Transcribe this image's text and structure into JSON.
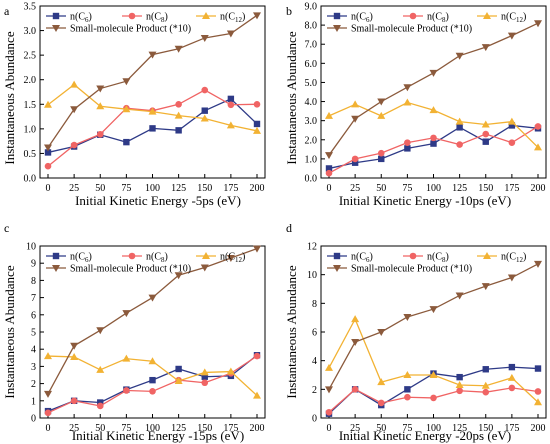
{
  "colors": {
    "c6": "#2e3a87",
    "c8": "#f06464",
    "c12": "#f2b233",
    "small": "#8b5a3c",
    "axis": "#000000"
  },
  "chart_data": [
    {
      "panel": "a",
      "type": "line",
      "xlabel": "Initial Kinetic Energy -5ps (eV)",
      "ylabel": "Instantaneous Abundance",
      "x": [
        0,
        25,
        50,
        75,
        100,
        125,
        150,
        175,
        200
      ],
      "xticks": [
        "0",
        "25",
        "50",
        "75",
        "100",
        "125",
        "150",
        "175",
        "200"
      ],
      "ylim": [
        0,
        3.5
      ],
      "yticks": [
        "0.0",
        "0.5",
        "1.0",
        "1.5",
        "2.0",
        "2.5",
        "3.0",
        "3.5"
      ],
      "legend": {
        "placement": "top-left",
        "c6": [
          "n(C",
          "6",
          ")"
        ],
        "c8": [
          "n(C",
          "8",
          ")"
        ],
        "c12": [
          "n(C",
          "12",
          ")"
        ],
        "small": "Small-molecule Product (*10)"
      },
      "series": [
        {
          "key": "c6",
          "marker": "square",
          "values": [
            0.52,
            0.64,
            0.88,
            0.73,
            1.01,
            0.97,
            1.37,
            1.61,
            1.1
          ]
        },
        {
          "key": "c8",
          "marker": "circle",
          "values": [
            0.24,
            0.67,
            0.89,
            1.42,
            1.37,
            1.5,
            1.79,
            1.49,
            1.5
          ]
        },
        {
          "key": "c12",
          "marker": "triangle-up",
          "values": [
            1.49,
            1.9,
            1.46,
            1.4,
            1.35,
            1.27,
            1.21,
            1.07,
            0.96
          ]
        },
        {
          "key": "small",
          "marker": "triangle-down",
          "values": [
            0.62,
            1.4,
            1.82,
            1.97,
            2.51,
            2.63,
            2.85,
            2.94,
            3.31
          ]
        }
      ]
    },
    {
      "panel": "b",
      "type": "line",
      "xlabel": "Initial Kinetic Energy -10ps (eV)",
      "ylabel": "Instantaneous Abundance",
      "x": [
        0,
        25,
        50,
        75,
        100,
        125,
        150,
        175,
        200
      ],
      "xticks": [
        "0",
        "25",
        "50",
        "75",
        "100",
        "125",
        "150",
        "175",
        "200"
      ],
      "ylim": [
        0,
        9
      ],
      "yticks": [
        "0.0",
        "1.0",
        "2.0",
        "3.0",
        "4.0",
        "5.0",
        "6.0",
        "7.0",
        "8.0",
        "9.0"
      ],
      "legend": {
        "placement": "top-left",
        "c6": [
          "n(C",
          "6",
          ")"
        ],
        "c8": [
          "n(C",
          "8",
          ")"
        ],
        "c12": [
          "n(C",
          "12",
          ")"
        ],
        "small": "Small-molecule Product (*10)"
      },
      "series": [
        {
          "key": "c6",
          "marker": "square",
          "values": [
            0.5,
            0.8,
            1.0,
            1.55,
            1.8,
            2.65,
            1.9,
            2.75,
            2.6
          ]
        },
        {
          "key": "c8",
          "marker": "circle",
          "values": [
            0.25,
            1.0,
            1.3,
            1.85,
            2.1,
            1.75,
            2.3,
            1.85,
            2.7
          ]
        },
        {
          "key": "c12",
          "marker": "triangle-up",
          "values": [
            3.25,
            3.85,
            3.25,
            3.95,
            3.55,
            2.95,
            2.8,
            2.95,
            1.6
          ]
        },
        {
          "key": "small",
          "marker": "triangle-down",
          "values": [
            1.2,
            3.1,
            4.0,
            4.75,
            5.5,
            6.4,
            6.85,
            7.45,
            8.1
          ]
        }
      ]
    },
    {
      "panel": "c",
      "type": "line",
      "xlabel": "Initial Kinetic Energy -15ps (eV)",
      "ylabel": "Instantaneous Abundance",
      "x": [
        0,
        25,
        50,
        75,
        100,
        125,
        150,
        175,
        200
      ],
      "xticks": [
        "0",
        "25",
        "50",
        "75",
        "100",
        "125",
        "150",
        "175",
        "200"
      ],
      "ylim": [
        0,
        10
      ],
      "yticks": [
        "0",
        "1",
        "2",
        "3",
        "4",
        "5",
        "6",
        "7",
        "8",
        "9",
        "10"
      ],
      "legend": {
        "placement": "top-left",
        "c6": [
          "n(C",
          "6",
          ")"
        ],
        "c8": [
          "n(C",
          "8",
          ")"
        ],
        "c12": [
          "n(C",
          "12",
          ")"
        ],
        "small": "Small-molecule Product (*10)"
      },
      "series": [
        {
          "key": "c6",
          "marker": "square",
          "values": [
            0.4,
            1.0,
            0.9,
            1.65,
            2.2,
            2.85,
            2.4,
            2.45,
            3.65
          ]
        },
        {
          "key": "c8",
          "marker": "circle",
          "values": [
            0.3,
            1.0,
            0.7,
            1.6,
            1.55,
            2.2,
            2.05,
            2.6,
            3.6
          ]
        },
        {
          "key": "c12",
          "marker": "triangle-up",
          "values": [
            3.6,
            3.55,
            2.8,
            3.45,
            3.3,
            2.15,
            2.65,
            2.7,
            1.3
          ]
        },
        {
          "key": "small",
          "marker": "triangle-down",
          "values": [
            1.4,
            4.2,
            5.1,
            6.1,
            7.0,
            8.3,
            8.75,
            9.3,
            9.85
          ]
        }
      ]
    },
    {
      "panel": "d",
      "type": "line",
      "xlabel": "Initial Kinetic Energy -20ps (eV)",
      "ylabel": "Instantaneous Abundance",
      "x": [
        0,
        25,
        50,
        75,
        100,
        125,
        150,
        175,
        200
      ],
      "xticks": [
        "0",
        "25",
        "50",
        "75",
        "100",
        "125",
        "150",
        "175",
        "200"
      ],
      "ylim": [
        0,
        12
      ],
      "yticks": [
        "0",
        "2",
        "4",
        "6",
        "8",
        "10",
        "12"
      ],
      "legend": {
        "placement": "top-left",
        "c6": [
          "n(C",
          "6",
          ")"
        ],
        "c8": [
          "n(C",
          "8",
          ")"
        ],
        "c12": [
          "n(C",
          "12",
          ")"
        ],
        "small": "Small-molecule Product (*10)"
      },
      "series": [
        {
          "key": "c6",
          "marker": "square",
          "values": [
            0.3,
            2.0,
            0.9,
            2.0,
            3.1,
            2.85,
            3.4,
            3.55,
            3.45
          ]
        },
        {
          "key": "c8",
          "marker": "circle",
          "values": [
            0.4,
            2.0,
            1.05,
            1.45,
            1.4,
            1.9,
            1.8,
            2.1,
            1.85
          ]
        },
        {
          "key": "c12",
          "marker": "triangle-up",
          "values": [
            3.5,
            6.9,
            2.5,
            3.0,
            3.0,
            2.3,
            2.25,
            2.8,
            1.1
          ]
        },
        {
          "key": "small",
          "marker": "triangle-down",
          "values": [
            2.0,
            5.3,
            6.0,
            7.05,
            7.6,
            8.55,
            9.2,
            9.8,
            10.75
          ]
        }
      ]
    }
  ]
}
